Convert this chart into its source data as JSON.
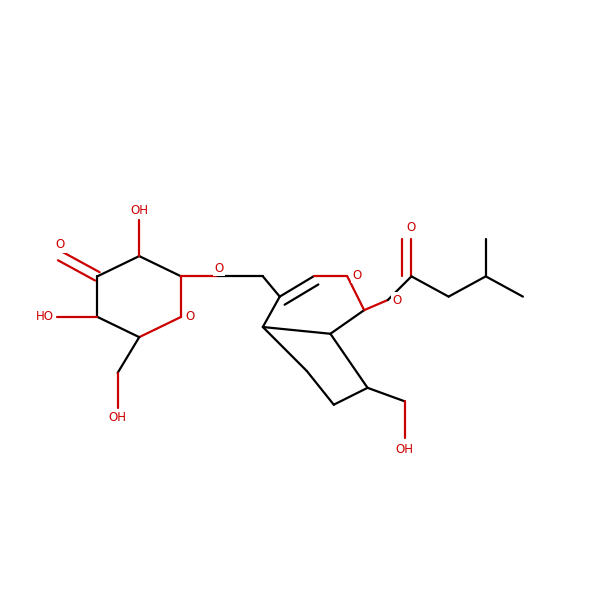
{
  "background_color": "#ffffff",
  "bond_color": "#000000",
  "heteroatom_color": "#cc0000",
  "font_size": 8.5,
  "line_width": 1.6,
  "fig_size": [
    6.0,
    6.0
  ],
  "dpi": 100,
  "xlim": [
    -0.3,
    8.5
  ],
  "ylim": [
    0.5,
    6.5
  ]
}
